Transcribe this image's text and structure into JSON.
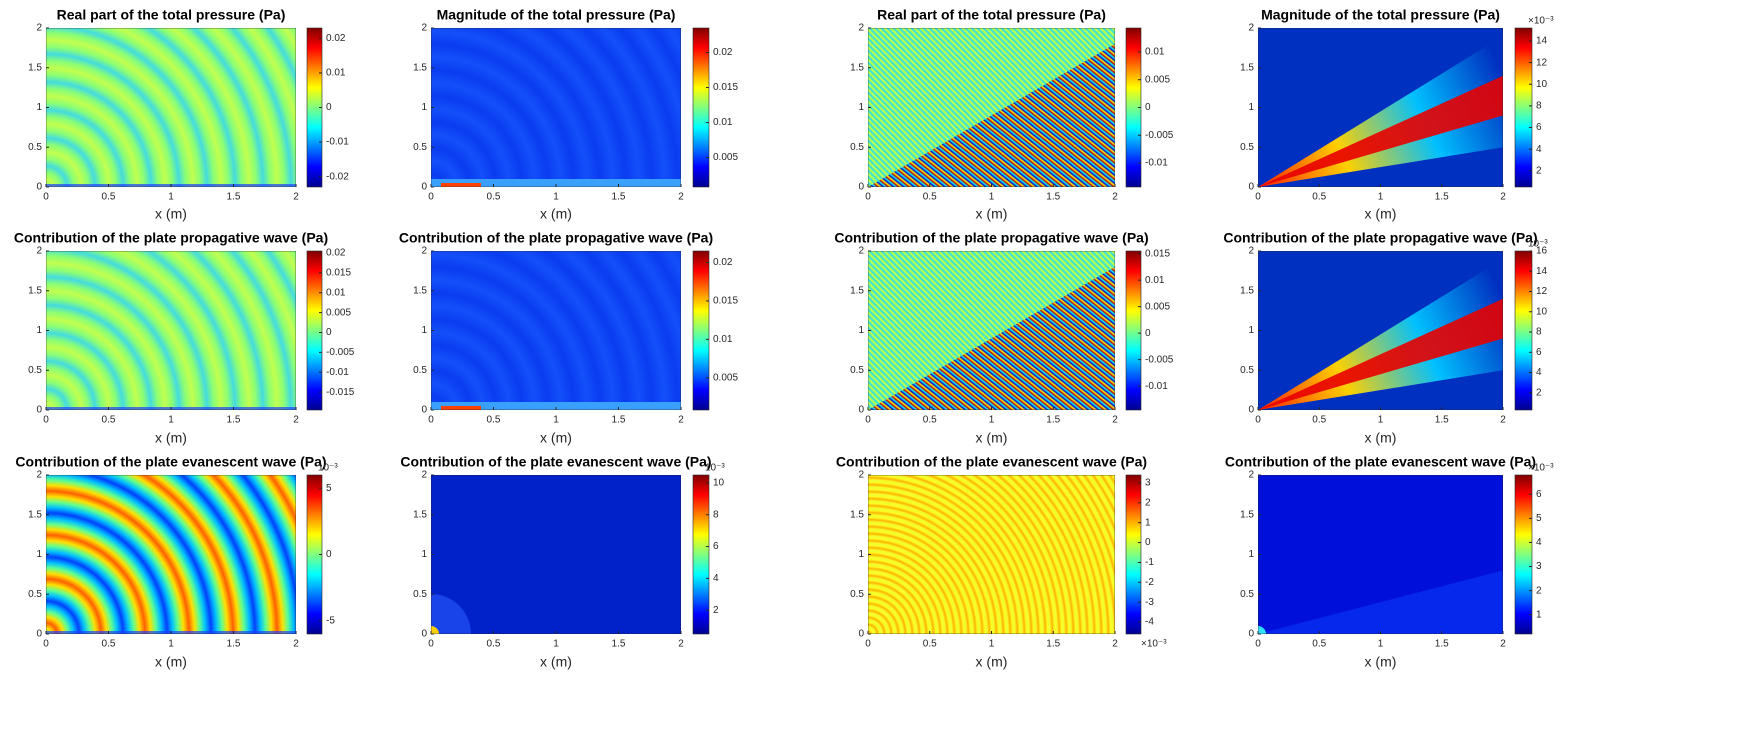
{
  "chart_data": [
    {
      "type": "heatmap",
      "title": "Real part of the total pressure (Pa)",
      "xlabel": "x (m)",
      "xlim": [
        0,
        2
      ],
      "ylim": [
        0,
        2
      ],
      "xticks": [
        0,
        0.5,
        1,
        1.5,
        2
      ],
      "yticks": [
        0,
        0.5,
        1,
        1.5,
        2
      ],
      "clim": [
        -0.023,
        0.023
      ],
      "cticks": [
        -0.02,
        -0.01,
        0,
        0.01,
        0.02
      ]
    },
    {
      "type": "heatmap",
      "title": "Magnitude of the total pressure (Pa)",
      "xlabel": "x (m)",
      "xlim": [
        0,
        2
      ],
      "ylim": [
        0,
        2
      ],
      "xticks": [
        0,
        0.5,
        1,
        1.5,
        2
      ],
      "yticks": [
        0,
        0.5,
        1,
        1.5,
        2
      ],
      "clim": [
        0.0008,
        0.0235
      ],
      "cticks": [
        0.005,
        0.01,
        0.015,
        0.02
      ]
    },
    {
      "type": "heatmap",
      "title": "Real part of the total pressure (Pa)",
      "xlabel": "x (m)",
      "xlim": [
        0,
        2
      ],
      "ylim": [
        0,
        2
      ],
      "xticks": [
        0,
        0.5,
        1,
        1.5,
        2
      ],
      "yticks": [
        0,
        0.5,
        1,
        1.5,
        2
      ],
      "clim": [
        -0.0143,
        0.0143
      ],
      "cticks": [
        -0.01,
        -0.005,
        0,
        0.005,
        0.01
      ]
    },
    {
      "type": "heatmap",
      "title": "Magnitude of the total pressure (Pa)",
      "xlabel": "x (m)",
      "xlim": [
        0,
        2
      ],
      "ylim": [
        0,
        2
      ],
      "xticks": [
        0,
        0.5,
        1,
        1.5,
        2
      ],
      "yticks": [
        0,
        0.5,
        1,
        1.5,
        2
      ],
      "clim": [
        0.5,
        15.2
      ],
      "cticks": [
        2,
        4,
        6,
        8,
        10,
        12,
        14
      ],
      "cscale": "×10⁻³"
    },
    {
      "type": "heatmap",
      "title": "Contribution of the plate propagative wave (Pa)",
      "xlabel": "x (m)",
      "xlim": [
        0,
        2
      ],
      "ylim": [
        0,
        2
      ],
      "xticks": [
        0,
        0.5,
        1,
        1.5,
        2
      ],
      "yticks": [
        0,
        0.5,
        1,
        1.5,
        2
      ],
      "clim": [
        -0.0195,
        0.0205
      ],
      "cticks": [
        -0.015,
        -0.01,
        -0.005,
        0,
        0.005,
        0.01,
        0.015,
        0.02
      ]
    },
    {
      "type": "heatmap",
      "title": "Contribution of the plate propagative wave (Pa)",
      "xlabel": "x (m)",
      "xlim": [
        0,
        2
      ],
      "ylim": [
        0,
        2
      ],
      "xticks": [
        0,
        0.5,
        1,
        1.5,
        2
      ],
      "yticks": [
        0,
        0.5,
        1,
        1.5,
        2
      ],
      "clim": [
        0.0008,
        0.0215
      ],
      "cticks": [
        0.005,
        0.01,
        0.015,
        0.02
      ]
    },
    {
      "type": "heatmap",
      "title": "Contribution of the plate propagative wave (Pa)",
      "xlabel": "x (m)",
      "xlim": [
        0,
        2
      ],
      "ylim": [
        0,
        2
      ],
      "xticks": [
        0,
        0.5,
        1,
        1.5,
        2
      ],
      "yticks": [
        0,
        0.5,
        1,
        1.5,
        2
      ],
      "clim": [
        -0.0145,
        0.0155
      ],
      "cticks": [
        -0.01,
        -0.005,
        0,
        0.005,
        0.01,
        0.015
      ]
    },
    {
      "type": "heatmap",
      "title": "Contribution of the plate propagative wave (Pa)",
      "xlabel": "x (m)",
      "xlim": [
        0,
        2
      ],
      "ylim": [
        0,
        2
      ],
      "xticks": [
        0,
        0.5,
        1,
        1.5,
        2
      ],
      "yticks": [
        0,
        0.5,
        1,
        1.5,
        2
      ],
      "clim": [
        0.3,
        16
      ],
      "cticks": [
        2,
        4,
        6,
        8,
        10,
        12,
        14,
        16
      ],
      "cscale": "10⁻³"
    },
    {
      "type": "heatmap",
      "title": "Contribution of the plate evanescent wave (Pa)",
      "xlabel": "x (m)",
      "xlim": [
        0,
        2
      ],
      "ylim": [
        0,
        2
      ],
      "xticks": [
        0,
        0.5,
        1,
        1.5,
        2
      ],
      "yticks": [
        0,
        0.5,
        1,
        1.5,
        2
      ],
      "clim": [
        -6,
        6
      ],
      "cticks": [
        -5,
        0,
        5
      ],
      "cscale": "10⁻³"
    },
    {
      "type": "heatmap",
      "title": "Contribution of the plate evanescent wave (Pa)",
      "xlabel": "x (m)",
      "xlim": [
        0,
        2
      ],
      "ylim": [
        0,
        2
      ],
      "xticks": [
        0,
        0.5,
        1,
        1.5,
        2
      ],
      "yticks": [
        0,
        0.5,
        1,
        1.5,
        2
      ],
      "clim": [
        0.5,
        10.5
      ],
      "cticks": [
        2,
        4,
        6,
        8,
        10
      ],
      "cscale": "10⁻³"
    },
    {
      "type": "heatmap",
      "title": "Contribution of the plate evanescent wave (Pa)",
      "xlabel": "x (m)",
      "xlim": [
        0,
        2
      ],
      "ylim": [
        0,
        2
      ],
      "xticks": [
        0,
        0.5,
        1,
        1.5,
        2
      ],
      "yticks": [
        0,
        0.5,
        1,
        1.5,
        2
      ],
      "clim": [
        -4.6,
        3.4
      ],
      "cticks": [
        -4,
        -3,
        -2,
        -1,
        0,
        1,
        2,
        3
      ],
      "cscale": "×10⁻³"
    },
    {
      "type": "heatmap",
      "title": "Contribution of the plate evanescent wave (Pa)",
      "xlabel": "x (m)",
      "xlim": [
        0,
        2
      ],
      "ylim": [
        0,
        2
      ],
      "xticks": [
        0,
        0.5,
        1,
        1.5,
        2
      ],
      "yticks": [
        0,
        0.5,
        1,
        1.5,
        2
      ],
      "clim": [
        0.2,
        6.8
      ],
      "cticks": [
        1,
        2,
        3,
        4,
        5,
        6
      ],
      "cscale": "×10⁻³"
    }
  ]
}
